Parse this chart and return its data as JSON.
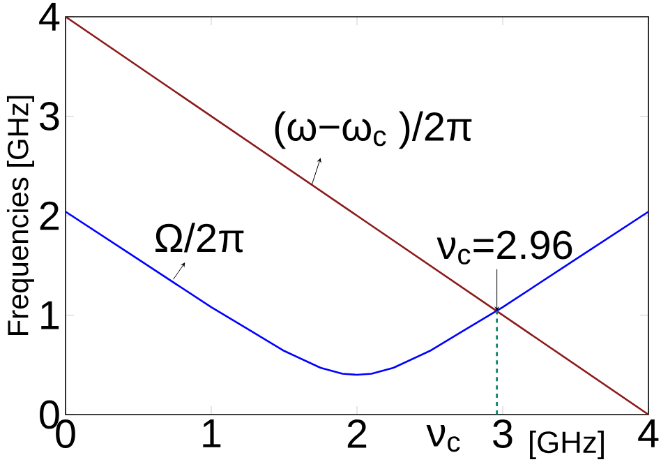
{
  "chart_data": {
    "type": "line",
    "xlabel": "[GHz]",
    "ylabel": "Frequencies  [GHz]",
    "xlim": [
      0,
      4
    ],
    "ylim": [
      0,
      4
    ],
    "xticks": [
      0,
      1,
      2,
      3,
      4
    ],
    "yticks": [
      0,
      1,
      2,
      3,
      4
    ],
    "grid": false,
    "legend": false,
    "marker": "none",
    "line_style": "solid",
    "series": [
      {
        "name": "(ω−ω$_{c}$ )/2π",
        "color": "#8b1a1a",
        "x": [
          0,
          4
        ],
        "values": [
          4,
          0
        ]
      },
      {
        "name": "Ω/2π",
        "color": "#0000ff",
        "x": [
          0,
          0.5,
          1,
          1.25,
          1.5,
          1.75,
          1.9,
          2,
          2.1,
          2.25,
          2.5,
          2.75,
          3,
          3.5,
          4
        ],
        "values": [
          2.04,
          1.56,
          1.08,
          0.86,
          0.64,
          0.47,
          0.41,
          0.4,
          0.41,
          0.47,
          0.64,
          0.86,
          1.08,
          1.56,
          2.04
        ]
      }
    ],
    "ref_lines": [
      {
        "axis": "x",
        "value": 2.96,
        "label": "ν$_{c}$",
        "color": "#008060",
        "line_style": "dashed"
      }
    ],
    "annotations": [
      {
        "text": "ν$_{c}$=2.96",
        "x": 2.96,
        "y": 1.04
      }
    ]
  }
}
